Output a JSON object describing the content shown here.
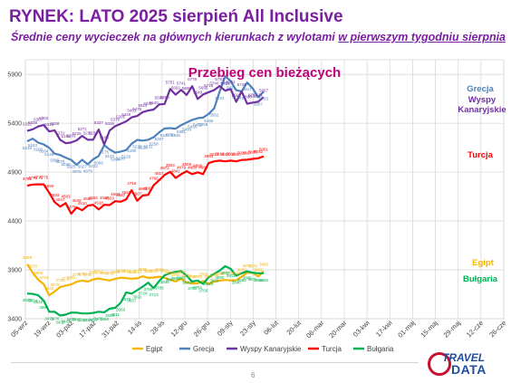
{
  "header": {
    "title": "RYNEK: LATO 2025 sierpień All Inclusive",
    "subtitle_prefix": "Średnie ceny wycieczek na głównych kierunkach z wylotami ",
    "subtitle_underlined": "w pierwszym tygodniu sierpnia"
  },
  "footer": {
    "page_number": "6"
  },
  "logo": {
    "top": "TRAVEL",
    "bottom": "DATA"
  },
  "chart_data": {
    "type": "line",
    "title": "Przebieg cen bieżących",
    "xlabel": "",
    "ylabel": "",
    "ylim": [
      3400,
      6050
    ],
    "yticks": [
      3400,
      3900,
      4400,
      4900,
      5400,
      5900
    ],
    "x_tick_labels": [
      "05-wrz",
      "19-wrz",
      "03-paź",
      "17-paź",
      "31-paź",
      "14-lis",
      "28-lis",
      "12-gru",
      "26-gru",
      "09-sty",
      "23-sty",
      "06-lut",
      "20-lut",
      "06-mar",
      "20-mar",
      "03-kwi",
      "17-kwi",
      "01-maj",
      "15-maj",
      "29-maj",
      "12-cze",
      "26-cze"
    ],
    "grid": true,
    "legend_position": "bottom",
    "series": [
      {
        "name": "Egipt",
        "color": "#f4b400",
        "values": [
          3958,
          3870,
          3800,
          3753,
          3640,
          3678,
          3725,
          3739,
          3751,
          3778,
          3790,
          3780,
          3801,
          3812,
          3800,
          3792,
          3808,
          3820,
          3815,
          3810,
          3813,
          3835,
          3818,
          3822,
          3830,
          3820,
          3798,
          3782,
          3810,
          3770,
          3760,
          3762,
          3785,
          3756,
          3780,
          3790,
          3797,
          3792,
          3794,
          3830,
          3872,
          3870,
          3832,
          3885
        ],
        "labels": [
          "3958",
          "3870",
          "3800",
          "3753",
          "3640",
          "3678",
          "3725",
          "3739",
          "3751",
          "3778",
          "3790",
          "3780",
          "3801",
          "3812",
          "3800",
          "3792",
          "3808",
          "3820",
          "3815",
          "3810",
          "3813",
          "3835",
          "3818",
          "3822",
          "3830",
          "3820",
          "3798",
          "3782",
          "3810",
          "3770",
          "3760",
          "3762",
          "3785",
          "3756",
          "3780",
          "3790",
          "3797",
          "3792",
          "3794",
          "3830",
          "3872",
          "3870",
          "3832",
          "3885"
        ]
      },
      {
        "name": "Grecja",
        "color": "#4f81bd",
        "values": [
          5216,
          5243,
          5202,
          5184,
          5149,
          5089,
          5075,
          5048,
          5025,
          4975,
          5027,
          4979,
          5032,
          5065,
          5175,
          5133,
          5099,
          5110,
          5126,
          5190,
          5230,
          5223,
          5231,
          5258,
          5307,
          5347,
          5350,
          5345,
          5381,
          5408,
          5435,
          5452,
          5458,
          5496,
          5552,
          5724,
          5881,
          5831,
          5739,
          5726,
          5817,
          5757,
          5667,
          5723
        ],
        "labels": [
          "5216",
          "5243",
          "5202",
          "5184",
          "5149",
          "5089",
          "5075",
          "5048",
          "5025",
          "4975",
          "5027",
          "4979",
          "5032",
          "5065",
          "5175",
          "5133",
          "5099",
          "5110",
          "5126",
          "5190",
          "5230",
          "5223",
          "5231",
          "5258",
          "5307",
          "5347",
          "5350",
          "5345",
          "5381",
          "5408",
          "5435",
          "5452",
          "5458",
          "5496",
          "5552",
          "5724",
          "5881",
          "5831",
          "5739",
          "5726",
          "5817",
          "5757",
          "5667",
          "5723"
        ]
      },
      {
        "name": "Wyspy Kanaryjskie",
        "color": "#7030a0",
        "values": [
          5322,
          5338,
          5367,
          5383,
          5316,
          5328,
          5231,
          5196,
          5203,
          5225,
          5271,
          5231,
          5232,
          5337,
          5183,
          5326,
          5370,
          5395,
          5420,
          5461,
          5475,
          5514,
          5530,
          5540,
          5592,
          5598,
          5751,
          5692,
          5741,
          5690,
          5779,
          5649,
          5695,
          5718,
          5740,
          5781,
          5733,
          5752,
          5619,
          5726,
          5600,
          5612,
          5621,
          5667
        ],
        "labels": [
          "5322",
          "5338",
          "5367",
          "5383",
          "5316",
          "5328",
          "5231",
          "5196",
          "5203",
          "5225",
          "5271",
          "5231",
          "5232",
          "5337",
          "5183",
          "5326",
          "5370",
          "5395",
          "5420",
          "5461",
          "5475",
          "5514",
          "5530",
          "5540",
          "5592",
          "5598",
          "5751",
          "5692",
          "5741",
          "5690",
          "5779",
          "5649",
          "5695",
          "5718",
          "5740",
          "5781",
          "5733",
          "5752",
          "5619",
          "5726",
          "5600",
          "5612",
          "5621",
          "5667"
        ]
      },
      {
        "name": "Turcja",
        "color": "#ff0000",
        "values": [
          4761,
          4773,
          4775,
          4775,
          4690,
          4593,
          4547,
          4583,
          4475,
          4539,
          4510,
          4556,
          4566,
          4518,
          4566,
          4563,
          4603,
          4597,
          4621,
          4716,
          4607,
          4661,
          4667,
          4766,
          4817,
          4872,
          4903,
          4841,
          4879,
          4909,
          4880,
          4898,
          4880,
          4993,
          5010,
          5018,
          5010,
          5018,
          5010,
          5024,
          5027,
          5035,
          5042,
          5061
        ],
        "labels": [
          "4761",
          "4773",
          "4775",
          "4775",
          "4690",
          "4593",
          "4547",
          "4583",
          "4475",
          "4539",
          "4510",
          "4556",
          "4566",
          "4518",
          "4566",
          "4563",
          "4603",
          "4597",
          "4621",
          "4716",
          "4607",
          "4661",
          "4667",
          "4766",
          "4817",
          "4872",
          "4903",
          "4841",
          "4879",
          "4909",
          "4880",
          "4898",
          "4880",
          "4993",
          "5010",
          "5018",
          "5010",
          "5018",
          "5010",
          "5024",
          "5027",
          "5035",
          "5042",
          "5061"
        ]
      },
      {
        "name": "Bułgaria",
        "color": "#00b050",
        "values": [
          3658,
          3654,
          3640,
          3586,
          3471,
          3470,
          3432,
          3442,
          3463,
          3462,
          3454,
          3454,
          3459,
          3471,
          3466,
          3503,
          3511,
          3563,
          3670,
          3657,
          3692,
          3728,
          3769,
          3713,
          3785,
          3845,
          3867,
          3880,
          3886,
          3840,
          3780,
          3791,
          3756,
          3825,
          3860,
          3892,
          3937,
          3911,
          3840,
          3865,
          3885,
          3871,
          3865,
          3865
        ],
        "labels": [
          "3658",
          "3654",
          "3640",
          "3586",
          "3471",
          "3470",
          "3432",
          "3442",
          "3463",
          "3462",
          "3454",
          "3454",
          "3459",
          "3471",
          "3466",
          "3503",
          "3511",
          "3563",
          "3670",
          "3657",
          "3692",
          "3728",
          "3769",
          "3713",
          "3785",
          "3845",
          "3867",
          "3880",
          "3886",
          "3840",
          "3780",
          "3791",
          "3756",
          "3825",
          "3860",
          "3892",
          "3937",
          "3911",
          "3840",
          "3865",
          "3885",
          "3871",
          "3865",
          "3865"
        ]
      }
    ]
  }
}
